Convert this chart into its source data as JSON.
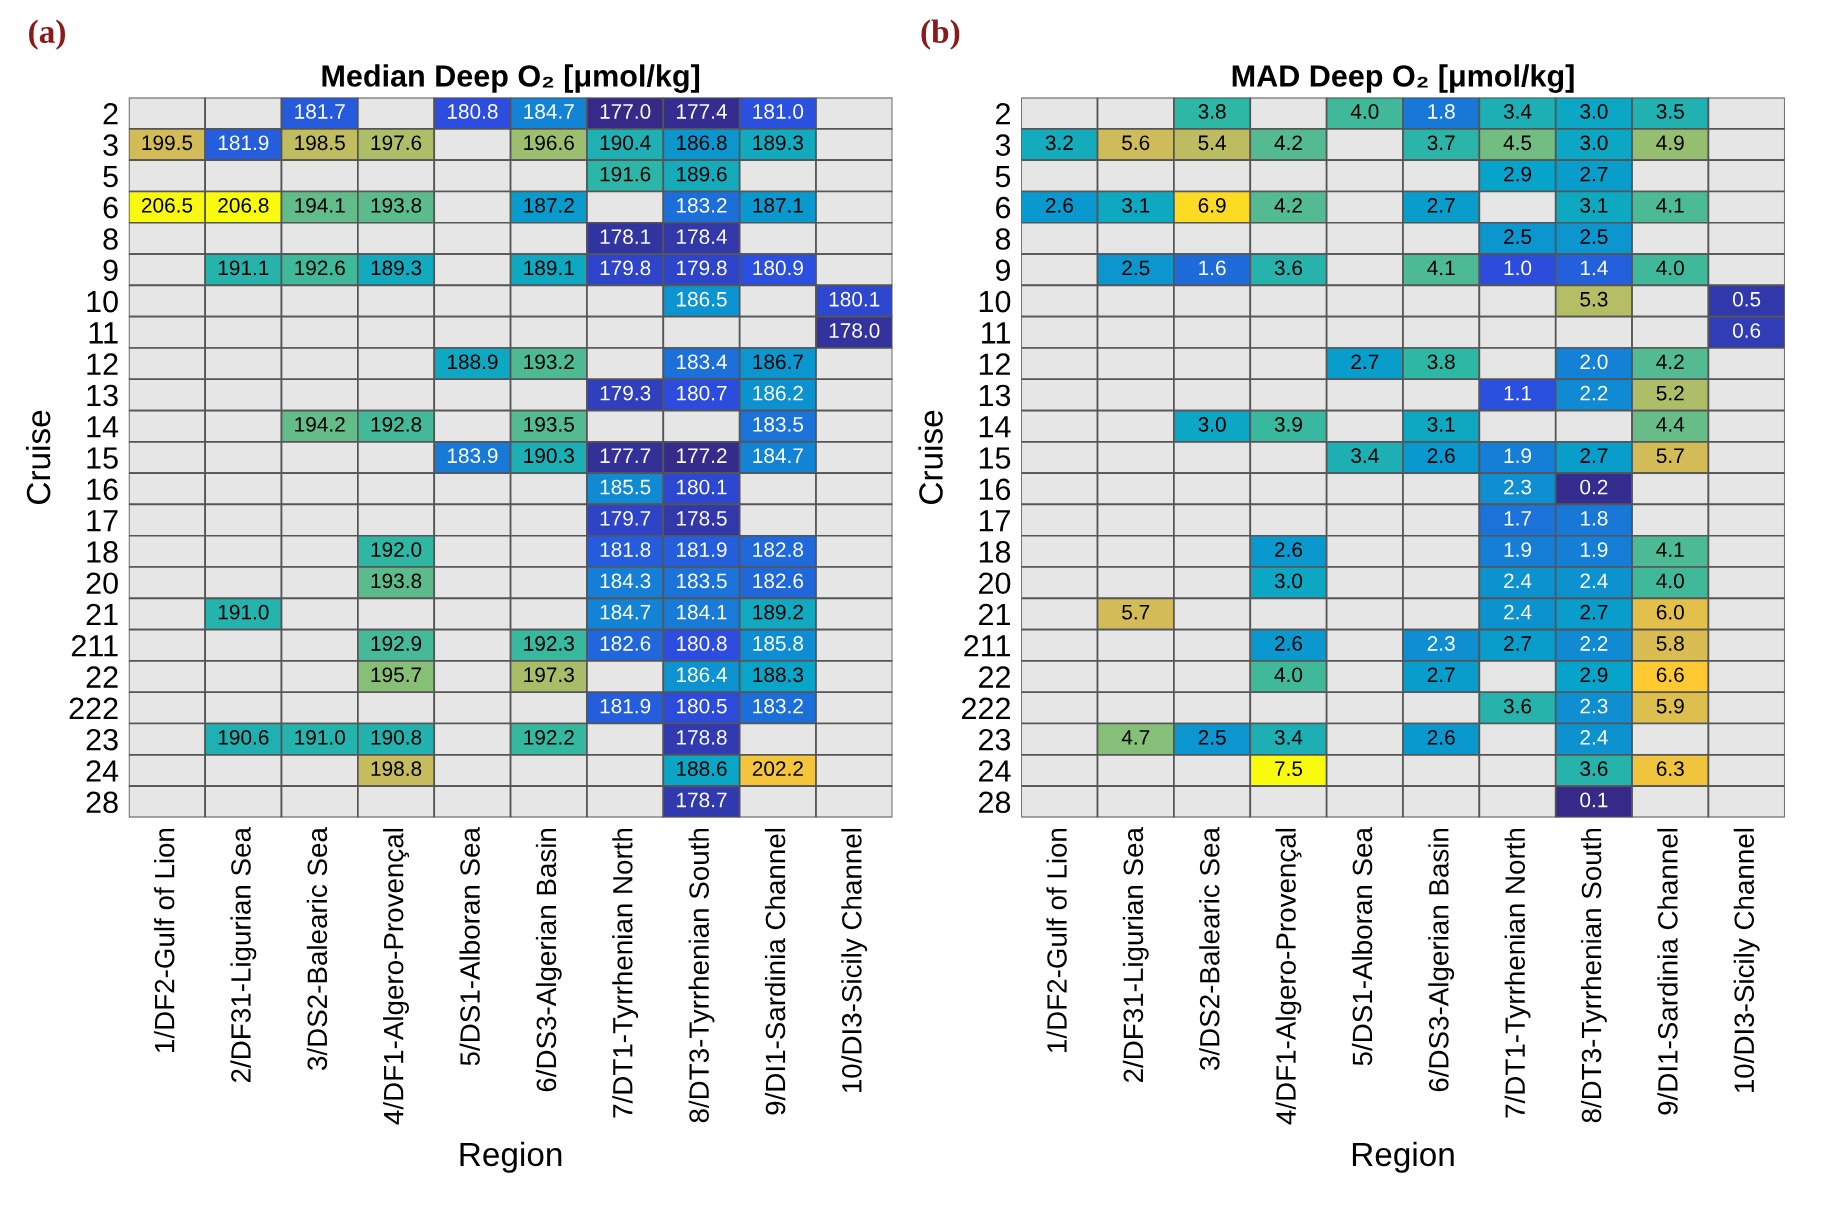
{
  "chart_data": [
    {
      "type": "heatmap",
      "title": "Median Deep O₂ [μmol/kg]",
      "xlabel": "Region",
      "ylabel": "Cruise",
      "annotations": [
        "(a)"
      ],
      "categories": [
        "1/DF2-Gulf of Lion",
        "2/DF31-Ligurian Sea",
        "3/DS2-Balearic Sea",
        "4/DF1-Algero-Provençal",
        "5/DS1-Alboran Sea",
        "6/DS3-Algerian Basin",
        "7/DT1-Tyrrhenian North",
        "8/DT3-Tyrrhenian South",
        "9/DI1-Sardinia Channel",
        "10/DI3-Sicily Channel"
      ],
      "y_categories": [
        "2",
        "3",
        "5",
        "6",
        "8",
        "9",
        "10",
        "11",
        "12",
        "13",
        "14",
        "15",
        "16",
        "17",
        "18",
        "20",
        "21",
        "211",
        "22",
        "222",
        "23",
        "24",
        "28"
      ],
      "cell_labels": [
        [
          null,
          null,
          "181.7",
          null,
          "180.8",
          "184.7",
          "177.0",
          "177.4",
          "181.0",
          null
        ],
        [
          "199.5",
          "181.9",
          "198.5",
          "197.6",
          null,
          "196.6",
          "190.4",
          "186.8",
          "189.3",
          null
        ],
        [
          null,
          null,
          null,
          null,
          null,
          null,
          "191.6",
          "189.6",
          null,
          null
        ],
        [
          "206.5",
          "206.8",
          "194.1",
          "193.8",
          null,
          "187.2",
          null,
          "183.2",
          "187.1",
          null
        ],
        [
          null,
          null,
          null,
          null,
          null,
          null,
          "178.1",
          "178.4",
          null,
          null
        ],
        [
          null,
          "191.1",
          "192.6",
          "189.3",
          null,
          "189.1",
          "179.8",
          "179.8",
          "180.9",
          null
        ],
        [
          null,
          null,
          null,
          null,
          null,
          null,
          null,
          "186.5",
          null,
          "180.1"
        ],
        [
          null,
          null,
          null,
          null,
          null,
          null,
          null,
          null,
          null,
          "178.0"
        ],
        [
          null,
          null,
          null,
          null,
          "188.9",
          "193.2",
          null,
          "183.4",
          "186.7",
          null
        ],
        [
          null,
          null,
          null,
          null,
          null,
          null,
          "179.3",
          "180.7",
          "186.2",
          null
        ],
        [
          null,
          null,
          "194.2",
          "192.8",
          null,
          "193.5",
          null,
          null,
          "183.5",
          null
        ],
        [
          null,
          null,
          null,
          null,
          "183.9",
          "190.3",
          "177.7",
          "177.2",
          "184.7",
          null
        ],
        [
          null,
          null,
          null,
          null,
          null,
          null,
          "185.5",
          "180.1",
          null,
          null
        ],
        [
          null,
          null,
          null,
          null,
          null,
          null,
          "179.7",
          "178.5",
          null,
          null
        ],
        [
          null,
          null,
          null,
          "192.0",
          null,
          null,
          "181.8",
          "181.9",
          "182.8",
          null
        ],
        [
          null,
          null,
          null,
          "193.8",
          null,
          null,
          "184.3",
          "183.5",
          "182.6",
          null
        ],
        [
          null,
          "191.0",
          null,
          null,
          null,
          null,
          "184.7",
          "184.1",
          "189.2",
          null
        ],
        [
          null,
          null,
          null,
          "192.9",
          null,
          "192.3",
          "182.6",
          "180.8",
          "185.8",
          null
        ],
        [
          null,
          null,
          null,
          "195.7",
          null,
          "197.3",
          null,
          "186.4",
          "188.3",
          null
        ],
        [
          null,
          null,
          null,
          null,
          null,
          null,
          "181.9",
          "180.5",
          "183.2",
          null
        ],
        [
          null,
          "190.6",
          "191.0",
          "190.8",
          null,
          "192.2",
          null,
          "178.8",
          null,
          null
        ],
        [
          null,
          null,
          null,
          "198.8",
          null,
          null,
          null,
          "188.6",
          "202.2",
          null
        ],
        [
          null,
          null,
          null,
          null,
          null,
          null,
          null,
          "178.7",
          null,
          null
        ]
      ],
      "cells": [
        [
          null,
          null,
          181.7,
          null,
          180.8,
          184.7,
          177.0,
          177.4,
          181.0,
          null
        ],
        [
          199.5,
          181.9,
          198.5,
          197.6,
          null,
          196.6,
          190.4,
          186.8,
          189.3,
          null
        ],
        [
          null,
          null,
          null,
          null,
          null,
          null,
          191.6,
          189.6,
          null,
          null
        ],
        [
          206.5,
          206.8,
          194.1,
          193.8,
          null,
          187.2,
          null,
          183.2,
          187.1,
          null
        ],
        [
          null,
          null,
          null,
          null,
          null,
          null,
          178.1,
          178.4,
          null,
          null
        ],
        [
          null,
          191.1,
          192.6,
          189.3,
          null,
          189.1,
          179.8,
          179.8,
          180.9,
          null
        ],
        [
          null,
          null,
          null,
          null,
          null,
          null,
          null,
          186.5,
          null,
          180.1
        ],
        [
          null,
          null,
          null,
          null,
          null,
          null,
          null,
          null,
          null,
          178.0
        ],
        [
          null,
          null,
          null,
          null,
          188.9,
          193.2,
          null,
          183.4,
          186.7,
          null
        ],
        [
          null,
          null,
          null,
          null,
          null,
          null,
          179.3,
          180.7,
          186.2,
          null
        ],
        [
          null,
          null,
          194.2,
          192.8,
          null,
          193.5,
          null,
          null,
          183.5,
          null
        ],
        [
          null,
          null,
          null,
          null,
          183.9,
          190.3,
          177.7,
          177.2,
          184.7,
          null
        ],
        [
          null,
          null,
          null,
          null,
          null,
          null,
          185.5,
          180.1,
          null,
          null
        ],
        [
          null,
          null,
          null,
          null,
          null,
          null,
          179.7,
          178.5,
          null,
          null
        ],
        [
          null,
          null,
          null,
          192.0,
          null,
          null,
          181.8,
          181.9,
          182.8,
          null
        ],
        [
          null,
          null,
          null,
          193.8,
          null,
          null,
          184.3,
          183.5,
          182.6,
          null
        ],
        [
          null,
          191.0,
          null,
          null,
          null,
          null,
          184.7,
          184.1,
          189.2,
          null
        ],
        [
          null,
          null,
          null,
          192.9,
          null,
          192.3,
          182.6,
          180.8,
          185.8,
          null
        ],
        [
          null,
          null,
          null,
          195.7,
          null,
          197.3,
          null,
          186.4,
          188.3,
          null
        ],
        [
          null,
          null,
          null,
          null,
          null,
          null,
          181.9,
          180.5,
          183.2,
          null
        ],
        [
          null,
          190.6,
          191.0,
          190.8,
          null,
          192.2,
          null,
          178.8,
          null,
          null
        ],
        [
          null,
          null,
          null,
          198.8,
          null,
          null,
          null,
          188.6,
          202.2,
          null
        ],
        [
          null,
          null,
          null,
          null,
          null,
          null,
          null,
          178.7,
          null,
          null
        ]
      ]
    },
    {
      "type": "heatmap",
      "title": "MAD Deep O₂ [μmol/kg]",
      "xlabel": "Region",
      "ylabel": "Cruise",
      "annotations": [
        "(b)"
      ],
      "categories": [
        "1/DF2-Gulf of Lion",
        "2/DF31-Ligurian Sea",
        "3/DS2-Balearic Sea",
        "4/DF1-Algero-Provençal",
        "5/DS1-Alboran Sea",
        "6/DS3-Algerian Basin",
        "7/DT1-Tyrrhenian North",
        "8/DT3-Tyrrhenian South",
        "9/DI1-Sardinia Channel",
        "10/DI3-Sicily Channel"
      ],
      "y_categories": [
        "2",
        "3",
        "5",
        "6",
        "8",
        "9",
        "10",
        "11",
        "12",
        "13",
        "14",
        "15",
        "16",
        "17",
        "18",
        "20",
        "21",
        "211",
        "22",
        "222",
        "23",
        "24",
        "28"
      ],
      "cell_labels": [
        [
          null,
          null,
          "3.8",
          null,
          "4.0",
          "1.8",
          "3.4",
          "3.0",
          "3.5",
          null
        ],
        [
          "3.2",
          "5.6",
          "5.4",
          "4.2",
          null,
          "3.7",
          "4.5",
          "3.0",
          "4.9",
          null
        ],
        [
          null,
          null,
          null,
          null,
          null,
          null,
          "2.9",
          "2.7",
          null,
          null
        ],
        [
          "2.6",
          "3.1",
          "6.9",
          "4.2",
          null,
          "2.7",
          null,
          "3.1",
          "4.1",
          null
        ],
        [
          null,
          null,
          null,
          null,
          null,
          null,
          "2.5",
          "2.5",
          null,
          null
        ],
        [
          null,
          "2.5",
          "1.6",
          "3.6",
          null,
          "4.1",
          "1.0",
          "1.4",
          "4.0",
          null
        ],
        [
          null,
          null,
          null,
          null,
          null,
          null,
          null,
          "5.3",
          null,
          "0.5"
        ],
        [
          null,
          null,
          null,
          null,
          null,
          null,
          null,
          null,
          null,
          "0.6"
        ],
        [
          null,
          null,
          null,
          null,
          "2.7",
          "3.8",
          null,
          "2.0",
          "4.2",
          null
        ],
        [
          null,
          null,
          null,
          null,
          null,
          null,
          "1.1",
          "2.2",
          "5.2",
          null
        ],
        [
          null,
          null,
          "3.0",
          "3.9",
          null,
          "3.1",
          null,
          null,
          "4.4",
          null
        ],
        [
          null,
          null,
          null,
          null,
          "3.4",
          "2.6",
          "1.9",
          "2.7",
          "5.7",
          null
        ],
        [
          null,
          null,
          null,
          null,
          null,
          null,
          "2.3",
          "0.2",
          null,
          null
        ],
        [
          null,
          null,
          null,
          null,
          null,
          null,
          "1.7",
          "1.8",
          null,
          null
        ],
        [
          null,
          null,
          null,
          "2.6",
          null,
          null,
          "1.9",
          "1.9",
          "4.1",
          null
        ],
        [
          null,
          null,
          null,
          "3.0",
          null,
          null,
          "2.4",
          "2.4",
          "4.0",
          null
        ],
        [
          null,
          "5.7",
          null,
          null,
          null,
          null,
          "2.4",
          "2.7",
          "6.0",
          null
        ],
        [
          null,
          null,
          null,
          "2.6",
          null,
          "2.3",
          "2.7",
          "2.2",
          "5.8",
          null
        ],
        [
          null,
          null,
          null,
          "4.0",
          null,
          "2.7",
          null,
          "2.9",
          "6.6",
          null
        ],
        [
          null,
          null,
          null,
          null,
          null,
          null,
          "3.6",
          "2.3",
          "5.9",
          null
        ],
        [
          null,
          "4.7",
          "2.5",
          "3.4",
          null,
          "2.6",
          null,
          "2.4",
          null,
          null
        ],
        [
          null,
          null,
          null,
          "7.5",
          null,
          null,
          null,
          "3.6",
          "6.3",
          null
        ],
        [
          null,
          null,
          null,
          null,
          null,
          null,
          null,
          "0.1",
          null,
          null
        ]
      ],
      "cells": [
        [
          null,
          null,
          3.8,
          null,
          4.0,
          1.8,
          3.4,
          3.0,
          3.5,
          null
        ],
        [
          3.2,
          5.6,
          5.4,
          4.2,
          null,
          3.7,
          4.5,
          3.0,
          4.9,
          null
        ],
        [
          null,
          null,
          null,
          null,
          null,
          null,
          2.9,
          2.7,
          null,
          null
        ],
        [
          2.6,
          3.1,
          6.9,
          4.2,
          null,
          2.7,
          null,
          3.1,
          4.1,
          null
        ],
        [
          null,
          null,
          null,
          null,
          null,
          null,
          2.5,
          2.5,
          null,
          null
        ],
        [
          null,
          2.5,
          1.6,
          3.6,
          null,
          4.1,
          1.0,
          1.4,
          4.0,
          null
        ],
        [
          null,
          null,
          null,
          null,
          null,
          null,
          null,
          5.3,
          null,
          0.5
        ],
        [
          null,
          null,
          null,
          null,
          null,
          null,
          null,
          null,
          null,
          0.6
        ],
        [
          null,
          null,
          null,
          null,
          2.7,
          3.8,
          null,
          2.0,
          4.2,
          null
        ],
        [
          null,
          null,
          null,
          null,
          null,
          null,
          1.1,
          2.2,
          5.2,
          null
        ],
        [
          null,
          null,
          3.0,
          3.9,
          null,
          3.1,
          null,
          null,
          4.4,
          null
        ],
        [
          null,
          null,
          null,
          null,
          3.4,
          2.6,
          1.9,
          2.7,
          5.7,
          null
        ],
        [
          null,
          null,
          null,
          null,
          null,
          null,
          2.3,
          0.2,
          null,
          null
        ],
        [
          null,
          null,
          null,
          null,
          null,
          null,
          1.7,
          1.8,
          null,
          null
        ],
        [
          null,
          null,
          null,
          2.6,
          null,
          null,
          1.9,
          1.9,
          4.1,
          null
        ],
        [
          null,
          null,
          null,
          3.0,
          null,
          null,
          2.4,
          2.4,
          4.0,
          null
        ],
        [
          null,
          5.7,
          null,
          null,
          null,
          null,
          2.4,
          2.7,
          6.0,
          null
        ],
        [
          null,
          null,
          null,
          2.6,
          null,
          2.3,
          2.7,
          2.2,
          5.8,
          null
        ],
        [
          null,
          null,
          null,
          4.0,
          null,
          2.7,
          null,
          2.9,
          6.6,
          null
        ],
        [
          null,
          null,
          null,
          null,
          null,
          null,
          3.6,
          2.3,
          5.9,
          null
        ],
        [
          null,
          4.7,
          2.5,
          3.4,
          null,
          2.6,
          null,
          2.4,
          null,
          null
        ],
        [
          null,
          null,
          null,
          7.5,
          null,
          null,
          null,
          3.6,
          6.3,
          null
        ],
        [
          null,
          null,
          null,
          null,
          null,
          null,
          null,
          0.1,
          null,
          null
        ]
      ]
    }
  ]
}
